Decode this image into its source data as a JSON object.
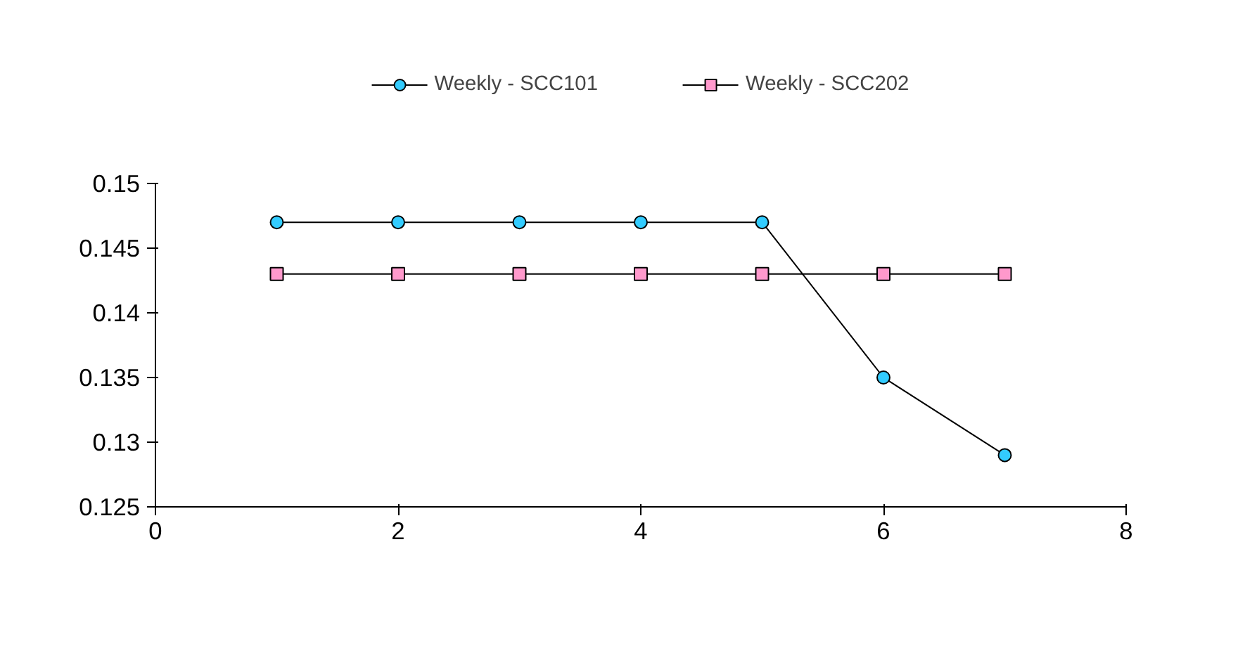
{
  "chart_data": {
    "type": "line",
    "x": [
      1,
      2,
      3,
      4,
      5,
      6,
      7
    ],
    "series": [
      {
        "name": "Weekly - SCC101",
        "color": "#33ccff",
        "marker": "circle",
        "values": [
          0.147,
          0.147,
          0.147,
          0.147,
          0.147,
          0.135,
          0.129
        ]
      },
      {
        "name": "Weekly - SCC202",
        "color": "#ff99cc",
        "marker": "square",
        "values": [
          0.143,
          0.143,
          0.143,
          0.143,
          0.143,
          0.143,
          0.143
        ]
      }
    ],
    "xlim": [
      0,
      8
    ],
    "xticks": [
      0,
      2,
      4,
      6,
      8
    ],
    "ylim": [
      0.125,
      0.15
    ],
    "yticks": [
      0.125,
      0.13,
      0.135,
      0.14,
      0.145,
      0.15
    ],
    "grid": false,
    "legend": "top",
    "line_style": "solid"
  }
}
